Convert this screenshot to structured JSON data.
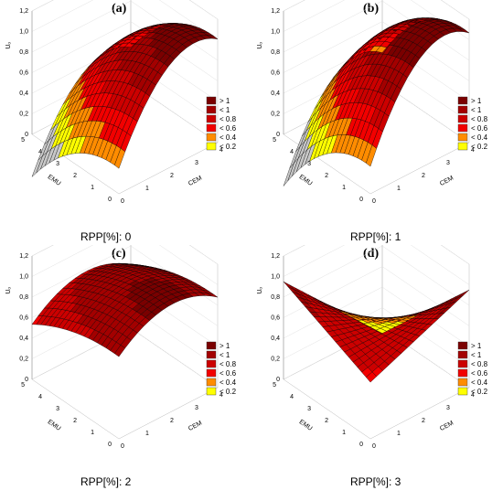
{
  "legend": {
    "items": [
      {
        "label": "> 1",
        "color": "#7a0000"
      },
      {
        "label": "< 1",
        "color": "#a30000"
      },
      {
        "label": "< 0.8",
        "color": "#cc0000"
      },
      {
        "label": "< 0.6",
        "color": "#f20000"
      },
      {
        "label": "< 0.4",
        "color": "#ff8c00"
      },
      {
        "label": "< 0.2",
        "color": "#ffff00"
      }
    ]
  },
  "chart_data": [
    {
      "panel_label": "(a)",
      "type": "surface3d",
      "caption": "RPP[%]: 0",
      "zlabel": "Uₒ",
      "xlabel": "CEM",
      "ylabel": "EMU",
      "x_ticks": [
        "0",
        "1",
        "2",
        "3",
        "4"
      ],
      "y_ticks": [
        "0",
        "1",
        "2",
        "3",
        "4",
        "5"
      ],
      "z_ticks": [
        "0",
        "0,2",
        "0,4",
        "0,6",
        "0,8",
        "1,0",
        "1,2"
      ],
      "xlim": [
        0,
        4
      ],
      "ylim": [
        0,
        5
      ],
      "zlim": [
        0,
        1.2
      ],
      "surface": {
        "base": 0.0,
        "cem_coef": 0.55,
        "cem_peak": 2.4,
        "cem_curv": 0.09,
        "emu_peak": 0.3,
        "emu_curv": 0.03
      }
    },
    {
      "panel_label": "(b)",
      "type": "surface3d",
      "caption": "RPP[%]: 1",
      "zlabel": "Uₒ",
      "xlabel": "CEM",
      "ylabel": "EMU",
      "x_ticks": [
        "0",
        "1",
        "2",
        "3",
        "4"
      ],
      "y_ticks": [
        "0",
        "1",
        "2",
        "3",
        "4",
        "5"
      ],
      "z_ticks": [
        "0",
        "0,2",
        "0,4",
        "0,6",
        "0,8",
        "1,0",
        "1,2"
      ],
      "xlim": [
        0,
        4
      ],
      "ylim": [
        0,
        5
      ],
      "zlim": [
        0,
        1.2
      ],
      "surface": {
        "base": 0.02,
        "cem_coef": 0.6,
        "cem_peak": 2.3,
        "cem_curv": 0.1,
        "emu_peak": 0.3,
        "emu_curv": 0.035
      }
    },
    {
      "panel_label": "(c)",
      "type": "surface3d",
      "caption": "RPP[%]: 2",
      "zlabel": "Uₒ",
      "xlabel": "CEM",
      "ylabel": "EMU",
      "x_ticks": [
        "0",
        "1",
        "2",
        "3",
        "4"
      ],
      "y_ticks": [
        "0",
        "1",
        "2",
        "3",
        "4",
        "5"
      ],
      "z_ticks": [
        "0",
        "0,2",
        "0,4",
        "0,6",
        "0,8",
        "1,0",
        "1,2"
      ],
      "xlim": [
        0,
        4
      ],
      "ylim": [
        0,
        5
      ],
      "zlim": [
        0,
        1.2
      ],
      "surface": {
        "base": 0.55,
        "cem_coef": 0.22,
        "cem_peak": 2.2,
        "cem_curv": 0.05,
        "emu_peak": 0.3,
        "emu_curv": 0.012
      }
    },
    {
      "panel_label": "(d)",
      "type": "surface3d",
      "caption": "RPP[%]: 3",
      "zlabel": "Uₒ",
      "xlabel": "CEM",
      "ylabel": "EMU",
      "x_ticks": [
        "0",
        "1",
        "2",
        "3",
        "4"
      ],
      "y_ticks": [
        "0",
        "1",
        "2",
        "3",
        "4",
        "5"
      ],
      "z_ticks": [
        "0",
        "0,2",
        "0,4",
        "0,6",
        "0,8",
        "1,0",
        "1,2"
      ],
      "xlim": [
        0,
        4
      ],
      "ylim": [
        0,
        5
      ],
      "zlim": [
        0,
        1.2
      ],
      "surface": {
        "saddle": true,
        "base": 0.55,
        "cem_coef": 0.1,
        "emu_coef": 0.08,
        "cross": -0.07
      }
    }
  ]
}
